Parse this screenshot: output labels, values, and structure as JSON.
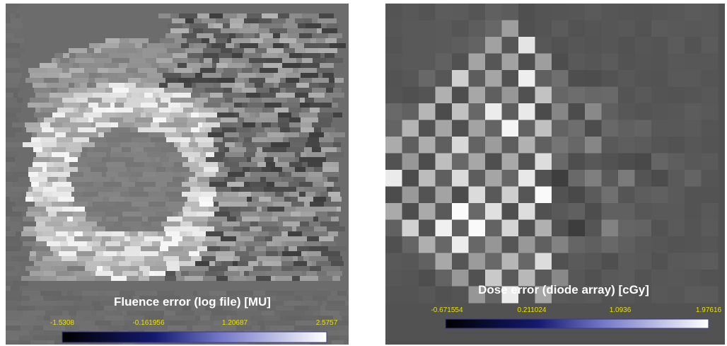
{
  "panels": [
    {
      "title": "Fluence error (log file) [MU]",
      "colorbar_ticks": [
        "-1.5308",
        "-0.161956",
        "1.20687",
        "2.5757"
      ]
    },
    {
      "title": "Dose error (diode array) [cGy]",
      "colorbar_ticks": [
        "-0.671554",
        "0.211024",
        "1.0936",
        "1.97616"
      ]
    }
  ]
}
